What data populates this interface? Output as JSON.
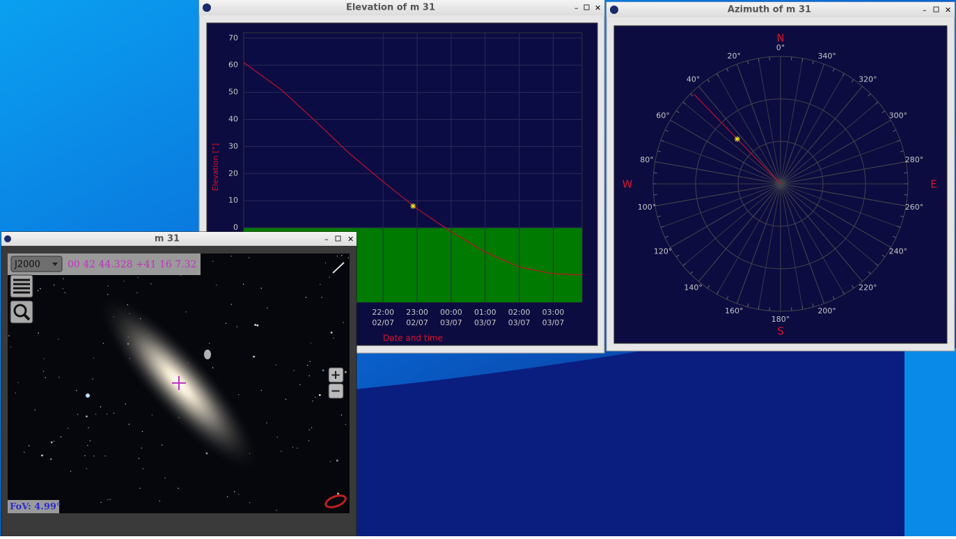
{
  "elevation_window": {
    "title": "Elevation of m 31",
    "chart": {
      "type": "line",
      "x_label": "Date and time",
      "y_label": "Elevation [°]",
      "xlim": [
        17.9,
        27.85
      ],
      "ylim": [
        -27.5,
        72
      ],
      "yticks": [
        0,
        10,
        20,
        30,
        40,
        50,
        60,
        70
      ],
      "xticks": [
        {
          "value": 22,
          "label": "22:00"
        },
        {
          "value": 23,
          "label": "23:00"
        },
        {
          "value": 24,
          "label": "00:00"
        },
        {
          "value": 25,
          "label": "01:00"
        },
        {
          "value": 26,
          "label": "02:00"
        },
        {
          "value": 27,
          "label": "03:00"
        }
      ],
      "xtick_dates": [
        "02/07",
        "02/07",
        "03/07",
        "03/07",
        "03/07",
        "03/07"
      ],
      "series": [
        {
          "color": "#c0102a",
          "x": [
            17.9,
            19,
            20,
            21,
            22,
            23,
            24,
            25,
            26,
            27,
            27.85
          ],
          "values": [
            61,
            51,
            39.5,
            27.5,
            17,
            7,
            -1.5,
            -9,
            -14.5,
            -17,
            -17.4
          ]
        }
      ],
      "current": {
        "x": 22.88,
        "y": 8,
        "color": "#f0e020"
      }
    }
  },
  "azimuth_window": {
    "title": "Azimuth of m 31",
    "chart": {
      "type": "polar",
      "north": "N",
      "west": "W",
      "south": "S",
      "east": "E",
      "rlim": [
        0,
        90
      ],
      "angle_ticks": [
        {
          "value": 0,
          "label": "0°"
        },
        {
          "value": 20,
          "label": "20°"
        },
        {
          "value": 40,
          "label": "40°"
        },
        {
          "value": 60,
          "label": "60°"
        },
        {
          "value": 80,
          "label": "80°"
        },
        {
          "value": 100,
          "label": "100°"
        },
        {
          "value": 120,
          "label": "120°"
        },
        {
          "value": 140,
          "label": "140°"
        },
        {
          "value": 160,
          "label": "160°"
        },
        {
          "value": 180,
          "label": "180°"
        },
        {
          "value": 200,
          "label": "200°"
        },
        {
          "value": 220,
          "label": "220°"
        },
        {
          "value": 240,
          "label": "240°"
        },
        {
          "value": 260,
          "label": "260°"
        },
        {
          "value": 280,
          "label": "280°"
        },
        {
          "value": 300,
          "label": "300°"
        },
        {
          "value": 320,
          "label": "320°"
        },
        {
          "value": 340,
          "label": "340°"
        }
      ],
      "track": {
        "color": "#c0102a",
        "azimuth": [
          44,
          44
        ],
        "r": [
          0,
          88
        ]
      },
      "current": {
        "azimuth": 44,
        "r": 44,
        "color": "#f0e020"
      }
    }
  },
  "image_window": {
    "title": "m 31",
    "epoch": "J2000",
    "coordinates": "00 42 44.328 +41 16 7.32",
    "fov": "FoV: 4.99°",
    "zoom_in": "+",
    "zoom_out": "−"
  }
}
